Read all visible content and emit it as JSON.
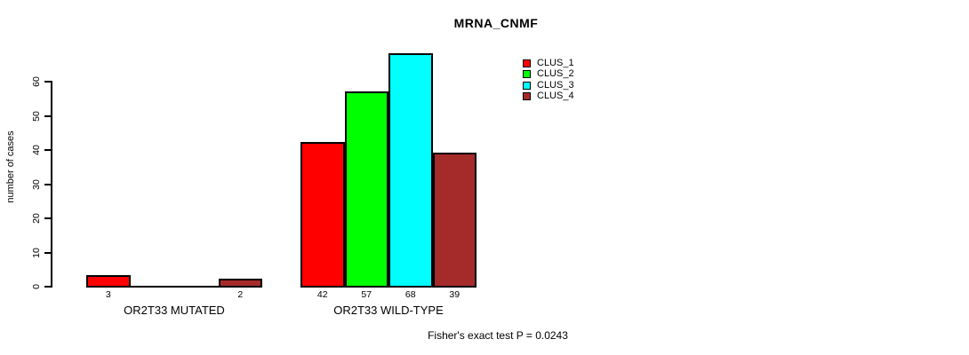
{
  "title": "MRNA_CNMF",
  "footer": "Fisher's exact test P = 0.0243",
  "chart_data": {
    "type": "bar",
    "title": "MRNA_CNMF",
    "ylabel": "number of cases",
    "xlabel": "",
    "ylim": [
      0,
      60
    ],
    "yticks": [
      0,
      10,
      20,
      30,
      40,
      50,
      60
    ],
    "grid": false,
    "legend_position": "top-right",
    "categories": [
      "OR2T33 MUTATED",
      "OR2T33 WILD-TYPE"
    ],
    "series": [
      {
        "name": "CLUS_1",
        "color": "#FF0000",
        "values": [
          3,
          42
        ]
      },
      {
        "name": "CLUS_2",
        "color": "#00FF00",
        "values": [
          0,
          57
        ]
      },
      {
        "name": "CLUS_3",
        "color": "#00FFFF",
        "values": [
          0,
          68
        ]
      },
      {
        "name": "CLUS_4",
        "color": "#A52A2A",
        "values": [
          2,
          39
        ]
      }
    ],
    "bar_value_labels": [
      [
        "3",
        "2"
      ],
      [
        "42",
        "57",
        "68",
        "39"
      ]
    ],
    "show_zero_value_labels": false,
    "annotation": "Fisher's exact test P = 0.0243"
  }
}
